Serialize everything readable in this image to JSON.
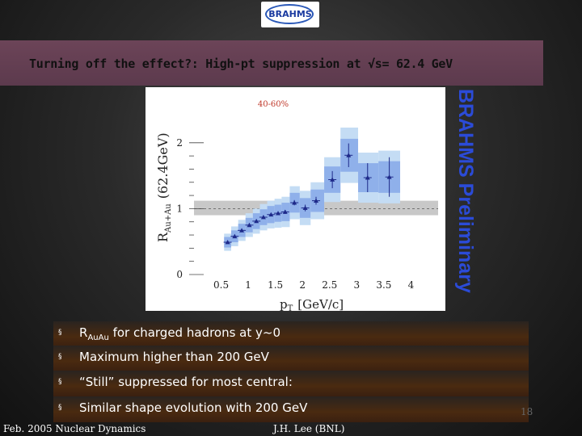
{
  "logo": {
    "text": "BRAHMS"
  },
  "slide": {
    "title": "Turning off the effect?: High-pt suppression at √s= 62.4 GeV",
    "preliminary_label": "BRAHMS Preliminary"
  },
  "bullets": [
    {
      "marker": "§",
      "pre": "R",
      "sub": "AuAu",
      "post": " for charged hadrons at y~0"
    },
    {
      "marker": "§",
      "text": "Maximum higher than 200 GeV"
    },
    {
      "marker": "§",
      "text": "“Still” suppressed for most central:"
    },
    {
      "marker": "§",
      "text": "Similar shape evolution with 200 GeV"
    }
  ],
  "footer": {
    "left": "Feb. 2005 Nuclear Dynamics",
    "center": "J.H. Lee (BNL)",
    "page": "18"
  },
  "chart_data": {
    "type": "scatter",
    "annotation": "40-60%",
    "ylabel_main": "R",
    "ylabel_sub": "Au+Au",
    "ylabel_suffix": "(62.4GeV)",
    "xlabel_main": "p",
    "xlabel_sub": "T",
    "xlabel_suffix": "[GeV/c]",
    "xlim": [
      0,
      4.5
    ],
    "ylim": [
      0,
      2.5
    ],
    "x_ticks": [
      "0.5",
      "1",
      "1.5",
      "2",
      "2.5",
      "3",
      "3.5",
      "4"
    ],
    "x_tick_values": [
      0.5,
      1,
      1.5,
      2,
      2.5,
      3,
      3.5,
      4
    ],
    "y_ticks": [
      "0",
      "1",
      "2"
    ],
    "y_tick_values": [
      0,
      1,
      2
    ],
    "reference_line": 1.0,
    "reference_band": [
      0.9,
      1.12
    ],
    "colors": {
      "point": "#1e2a8a",
      "sys_outer": "#c4dcf4",
      "sys_inner": "#8fb0ea",
      "band": "#c8c8c8",
      "annotation": "#c0392b"
    },
    "points": [
      {
        "x": 0.62,
        "y": 0.49,
        "sys": 0.08,
        "sys_out": 0.13,
        "err": 0.02
      },
      {
        "x": 0.75,
        "y": 0.58,
        "sys": 0.09,
        "sys_out": 0.15,
        "err": 0.02
      },
      {
        "x": 0.88,
        "y": 0.67,
        "sys": 0.1,
        "sys_out": 0.16,
        "err": 0.02
      },
      {
        "x": 1.02,
        "y": 0.75,
        "sys": 0.11,
        "sys_out": 0.18,
        "err": 0.02
      },
      {
        "x": 1.15,
        "y": 0.81,
        "sys": 0.12,
        "sys_out": 0.19,
        "err": 0.02
      },
      {
        "x": 1.28,
        "y": 0.87,
        "sys": 0.12,
        "sys_out": 0.2,
        "err": 0.02
      },
      {
        "x": 1.42,
        "y": 0.91,
        "sys": 0.13,
        "sys_out": 0.21,
        "err": 0.02
      },
      {
        "x": 1.55,
        "y": 0.93,
        "sys": 0.13,
        "sys_out": 0.22,
        "err": 0.02
      },
      {
        "x": 1.68,
        "y": 0.95,
        "sys": 0.14,
        "sys_out": 0.23,
        "err": 0.03
      },
      {
        "x": 1.85,
        "y": 1.09,
        "sys": 0.15,
        "sys_out": 0.25,
        "err": 0.04
      },
      {
        "x": 2.05,
        "y": 1.01,
        "sys": 0.15,
        "sys_out": 0.26,
        "err": 0.05
      },
      {
        "x": 2.25,
        "y": 1.12,
        "sys": 0.17,
        "sys_out": 0.28,
        "err": 0.06
      },
      {
        "x": 2.55,
        "y": 1.44,
        "sys": 0.2,
        "sys_out": 0.34,
        "err": 0.13
      },
      {
        "x": 2.85,
        "y": 1.81,
        "sys": 0.25,
        "sys_out": 0.42,
        "err": 0.18
      },
      {
        "x": 3.2,
        "y": 1.47,
        "sys": 0.22,
        "sys_out": 0.38,
        "err": 0.22
      },
      {
        "x": 3.6,
        "y": 1.48,
        "sys": 0.24,
        "sys_out": 0.4,
        "err": 0.3
      }
    ]
  }
}
